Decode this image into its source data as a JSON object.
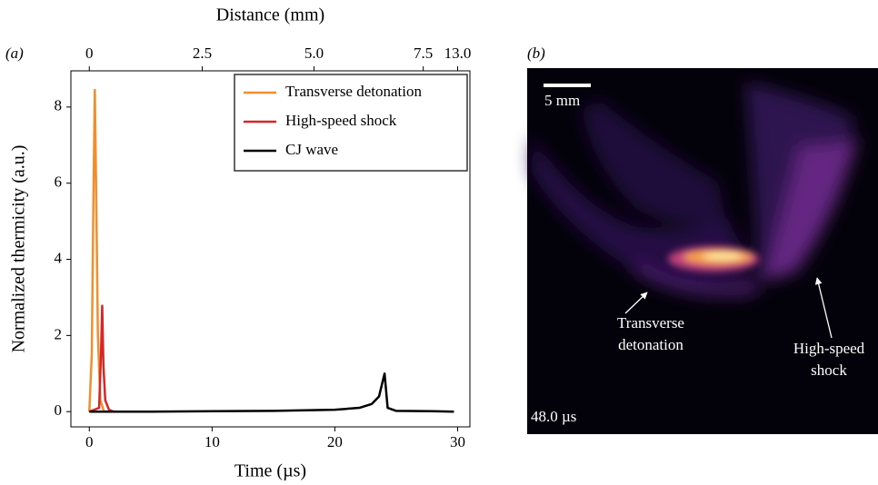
{
  "chart_data": {
    "type": "line",
    "panel_label": "(a)",
    "xlabel": "Time (µs)",
    "ylabel": "Normalized thermicity (a.u.)",
    "x2label": "Distance (mm)",
    "xlim": [
      -1.5,
      31
    ],
    "ylim": [
      -0.4,
      8.95
    ],
    "xticks": [
      0,
      10,
      20,
      30
    ],
    "yticks": [
      0,
      2,
      4,
      6,
      8
    ],
    "x2ticks": [
      {
        "value": 0,
        "label": "0"
      },
      {
        "value": 9.2,
        "label": "2.5"
      },
      {
        "value": 18.3,
        "label": "5.0"
      },
      {
        "value": 27.2,
        "label": "7.5"
      },
      {
        "value": 30,
        "label": "13.0"
      }
    ],
    "legend": "upper right",
    "series": [
      {
        "name": "Transverse detonation",
        "color": "#f28e2b",
        "x": [
          0,
          0.2,
          0.35,
          0.45,
          0.55,
          0.7,
          0.9,
          1.2
        ],
        "values": [
          0,
          1.5,
          6,
          8.45,
          6,
          2,
          0.3,
          0
        ]
      },
      {
        "name": "High-speed shock",
        "color": "#d62728",
        "x": [
          0,
          0.8,
          0.95,
          1.05,
          1.15,
          1.3,
          1.6,
          2,
          5
        ],
        "values": [
          0,
          0.1,
          1.5,
          2.78,
          1.2,
          0.3,
          0.05,
          0,
          0
        ]
      },
      {
        "name": "CJ wave",
        "color": "#000000",
        "x": [
          0,
          5,
          10,
          15,
          20,
          22,
          23,
          23.6,
          23.9,
          24.05,
          24.3,
          25,
          28,
          29.7
        ],
        "values": [
          0,
          0,
          0.01,
          0.02,
          0.05,
          0.1,
          0.2,
          0.4,
          0.8,
          1.0,
          0.1,
          0.02,
          0.01,
          0
        ]
      }
    ]
  },
  "image_panel": {
    "panel_label": "(b)",
    "scale_bar": "5 mm",
    "timestamp": "48.0 µs",
    "annotations": [
      [
        "Transverse",
        "detonation"
      ],
      [
        "High-speed",
        "shock"
      ]
    ]
  }
}
